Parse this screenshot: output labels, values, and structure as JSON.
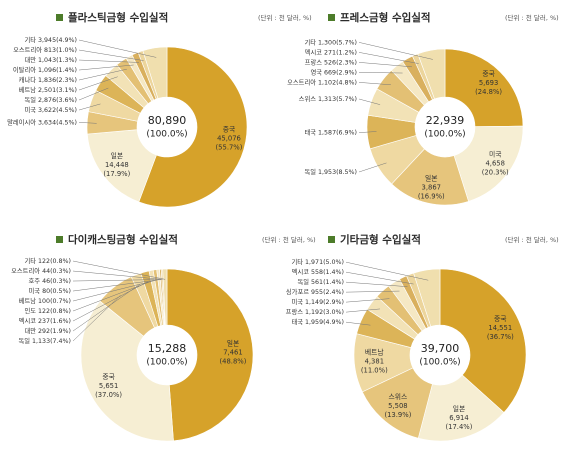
{
  "chart_data": [
    {
      "type": "pie",
      "title": "플라스틱금형 수입실적",
      "unit": "(단위 : 천 달러, %)",
      "total": "80,890",
      "total_percent": "(100.0%)",
      "categories": [
        "중국",
        "일본",
        "말레이시아",
        "미국",
        "독일",
        "베트남",
        "캐나다",
        "이탈리아",
        "대만",
        "오스트리아",
        "기타"
      ],
      "values": [
        45076,
        14448,
        3634,
        3622,
        2876,
        2501,
        1836,
        1096,
        1043,
        813,
        3945
      ],
      "value_labels": [
        "45,076",
        "14,448",
        "3,634",
        "3,622",
        "2,876",
        "2,501",
        "1,836",
        "1,096",
        "1,043",
        "813",
        "3,945"
      ],
      "percent_labels": [
        "(55.7%)",
        "(17.9%)",
        "(4.5%)",
        "(4.5%)",
        "(3.6%)",
        "(3.1%)",
        "(2.3%)",
        "(1.4%)",
        "(1.3%)",
        "(1.0%)",
        "(4.9%)"
      ],
      "colors": [
        "#d6a22a",
        "#f6eed3",
        "#e6c57c",
        "#efd9a2",
        "#dcb458",
        "#f2e2b6",
        "#e3c074",
        "#f5e8c4",
        "#d9b05e",
        "#ecd59c",
        "#f0dfae"
      ]
    },
    {
      "type": "pie",
      "title": "프레스금형 수입실적",
      "unit": "(단위 : 천 달러, %)",
      "total": "22,939",
      "total_percent": "(100.0%)",
      "categories": [
        "중국",
        "미국",
        "일본",
        "독일",
        "태국",
        "스위스",
        "오스트리아",
        "영국",
        "프랑스",
        "멕시코",
        "기타"
      ],
      "values": [
        5693,
        4658,
        3867,
        1953,
        1587,
        1313,
        1102,
        669,
        526,
        271,
        1300
      ],
      "value_labels": [
        "5,693",
        "4,658",
        "3,867",
        "1,953",
        "1,587",
        "1,313",
        "1,102",
        "669",
        "526",
        "271",
        "1,300"
      ],
      "percent_labels": [
        "(24.8%)",
        "(20.3%)",
        "(16.9%)",
        "(8.5%)",
        "(6.9%)",
        "(5.7%)",
        "(4.8%)",
        "(2.9%)",
        "(2.3%)",
        "(1.2%)",
        "(5.7%)"
      ],
      "colors": [
        "#d6a22a",
        "#f6eed3",
        "#e6c57c",
        "#efd9a2",
        "#dcb458",
        "#f2e2b6",
        "#e3c074",
        "#f5e8c4",
        "#d9b05e",
        "#ecd59c",
        "#f0dfae"
      ]
    },
    {
      "type": "pie",
      "title": "다이캐스팅금형 수입실적",
      "unit": "(단위 : 천 달러, %)",
      "total": "15,288",
      "total_percent": "(100.0%)",
      "categories": [
        "일본",
        "중국",
        "독일",
        "대만",
        "멕시코",
        "인도",
        "베트남",
        "미국",
        "호주",
        "오스트리아",
        "기타"
      ],
      "values": [
        7461,
        5651,
        1133,
        292,
        237,
        122,
        100,
        80,
        46,
        44,
        122
      ],
      "value_labels": [
        "7,461",
        "5,651",
        "1,133",
        "292",
        "237",
        "122",
        "100",
        "80",
        "46",
        "44",
        "122"
      ],
      "percent_labels": [
        "(48.8%)",
        "(37.0%)",
        "(7.4%)",
        "(1.9%)",
        "(1.6%)",
        "(0.8%)",
        "(0.7%)",
        "(0.5%)",
        "(0.3%)",
        "(0.3%)",
        "(0.8%)"
      ],
      "colors": [
        "#d6a22a",
        "#f6eed3",
        "#e6c57c",
        "#efd9a2",
        "#dcb458",
        "#f2e2b6",
        "#e3c074",
        "#f5e8c4",
        "#d9b05e",
        "#ecd59c",
        "#f0dfae"
      ]
    },
    {
      "type": "pie",
      "title": "기타금형 수입실적",
      "unit": "(단위 : 천 달러, %)",
      "total": "39,700",
      "total_percent": "(100.0%)",
      "categories": [
        "중국",
        "일본",
        "스위스",
        "베트남",
        "태국",
        "프랑스",
        "미국",
        "싱가포르",
        "독일",
        "멕시코",
        "기타"
      ],
      "values": [
        14551,
        6914,
        5508,
        4381,
        1959,
        1192,
        1149,
        955,
        561,
        558,
        1971
      ],
      "value_labels": [
        "14,551",
        "6,914",
        "5,508",
        "4,381",
        "1,959",
        "1,192",
        "1,149",
        "955",
        "561",
        "558",
        "1,971"
      ],
      "percent_labels": [
        "(36.7%)",
        "(17.4%)",
        "(13.9%)",
        "(11.0%)",
        "(4.9%)",
        "(3.0%)",
        "(2.9%)",
        "(2.4%)",
        "(1.4%)",
        "(1.4%)",
        "(5.0%)"
      ],
      "colors": [
        "#d6a22a",
        "#f6eed3",
        "#e6c57c",
        "#efd9a2",
        "#dcb458",
        "#f2e2b6",
        "#e3c074",
        "#f5e8c4",
        "#d9b05e",
        "#ecd59c",
        "#f0dfae"
      ]
    }
  ]
}
